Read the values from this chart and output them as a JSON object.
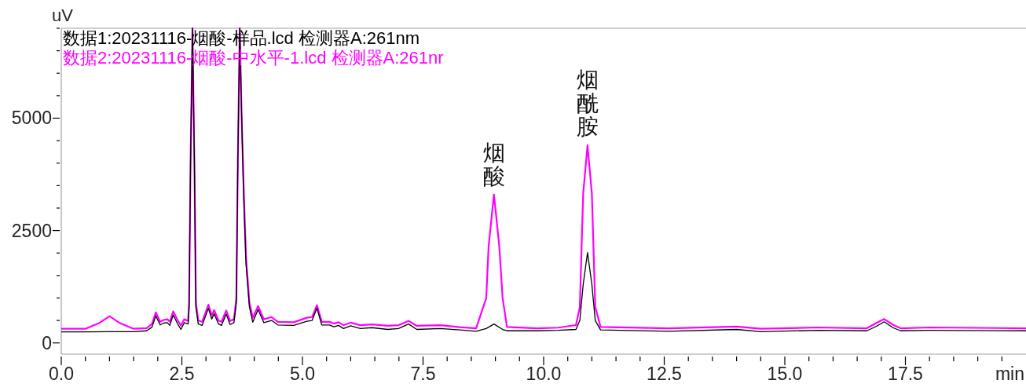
{
  "chart_data": {
    "type": "line",
    "xlabel": "min",
    "ylabel": "uV",
    "legend": "top left",
    "marker": "none",
    "line_style": "solid",
    "xlim": [
      0,
      20
    ],
    "ylim": [
      -250,
      7000
    ],
    "xticks": [
      {
        "value": 0,
        "label": "0.0"
      },
      {
        "value": 0.5,
        "label": null
      },
      {
        "value": 1,
        "label": null
      },
      {
        "value": 1.5,
        "label": null
      },
      {
        "value": 2,
        "label": null
      },
      {
        "value": 2.5,
        "label": "2.5"
      },
      {
        "value": 3,
        "label": null
      },
      {
        "value": 3.5,
        "label": null
      },
      {
        "value": 4,
        "label": null
      },
      {
        "value": 4.5,
        "label": null
      },
      {
        "value": 5,
        "label": "5.0"
      },
      {
        "value": 5.5,
        "label": null
      },
      {
        "value": 6,
        "label": null
      },
      {
        "value": 6.5,
        "label": null
      },
      {
        "value": 7,
        "label": null
      },
      {
        "value": 7.5,
        "label": "7.5"
      },
      {
        "value": 8,
        "label": null
      },
      {
        "value": 8.5,
        "label": null
      },
      {
        "value": 9,
        "label": null
      },
      {
        "value": 9.5,
        "label": null
      },
      {
        "value": 10,
        "label": "10.0"
      },
      {
        "value": 10.5,
        "label": null
      },
      {
        "value": 11,
        "label": null
      },
      {
        "value": 11.5,
        "label": null
      },
      {
        "value": 12,
        "label": null
      },
      {
        "value": 12.5,
        "label": "12.5"
      },
      {
        "value": 13,
        "label": null
      },
      {
        "value": 13.5,
        "label": null
      },
      {
        "value": 14,
        "label": null
      },
      {
        "value": 14.5,
        "label": null
      },
      {
        "value": 15,
        "label": "15.0"
      },
      {
        "value": 15.5,
        "label": null
      },
      {
        "value": 16,
        "label": null
      },
      {
        "value": 16.5,
        "label": null
      },
      {
        "value": 17,
        "label": null
      },
      {
        "value": 17.5,
        "label": "17.5"
      },
      {
        "value": 18,
        "label": null
      },
      {
        "value": 18.5,
        "label": null
      },
      {
        "value": 19,
        "label": null
      },
      {
        "value": 19.5,
        "label": null
      }
    ],
    "yticks": [
      0,
      {
        "value": 500,
        "label": null
      },
      {
        "value": 1000,
        "label": null
      },
      {
        "value": 1500,
        "label": null
      },
      {
        "value": 2000,
        "label": null
      },
      2500,
      {
        "value": 3000,
        "label": null
      },
      {
        "value": 3500,
        "label": null
      },
      {
        "value": 4000,
        "label": null
      },
      {
        "value": 4500,
        "label": null
      },
      5000,
      {
        "value": 5500,
        "label": null
      },
      {
        "value": 6000,
        "label": null
      },
      {
        "value": 6500,
        "label": null
      },
      {
        "value": 7000,
        "label": null
      }
    ],
    "series": [
      {
        "name": "数据1:20231116-烟酸-样品.lcd 检测器A:261nm",
        "color": "#000000",
        "x": [
          0,
          0.5,
          1.0,
          1.5,
          1.77,
          1.88,
          1.96,
          2.05,
          2.12,
          2.2,
          2.25,
          2.32,
          2.41,
          2.48,
          2.55,
          2.63,
          2.65,
          2.68,
          2.72,
          2.76,
          2.79,
          2.84,
          2.92,
          3.05,
          3.12,
          3.17,
          3.26,
          3.32,
          3.42,
          3.5,
          3.58,
          3.63,
          3.66,
          3.7,
          3.74,
          3.78,
          3.83,
          3.9,
          3.97,
          4.08,
          4.2,
          4.36,
          4.49,
          4.82,
          5.09,
          5.2,
          5.3,
          5.4,
          5.56,
          5.65,
          5.75,
          5.85,
          6.0,
          6.2,
          6.44,
          6.77,
          6.99,
          7.2,
          7.37,
          7.86,
          8.26,
          8.6,
          8.81,
          8.97,
          9.15,
          9.24,
          9.87,
          10.3,
          10.67,
          10.75,
          10.82,
          10.91,
          11.0,
          11.07,
          11.18,
          12.6,
          14.0,
          14.5,
          15.7,
          16.7,
          16.9,
          17.06,
          17.24,
          17.4,
          18.0,
          20.0
        ],
        "values": [
          245,
          245,
          250,
          250,
          270,
          350,
          600,
          400,
          440,
          450,
          390,
          620,
          430,
          300,
          450,
          420,
          800,
          4000,
          7000,
          4000,
          800,
          420,
          390,
          770,
          530,
          650,
          420,
          390,
          640,
          410,
          450,
          900,
          4000,
          7000,
          5000,
          3300,
          1750,
          800,
          460,
          740,
          450,
          500,
          400,
          390,
          480,
          500,
          770,
          400,
          400,
          360,
          390,
          320,
          380,
          320,
          340,
          300,
          320,
          420,
          300,
          320,
          290,
          260,
          320,
          420,
          300,
          270,
          270,
          280,
          300,
          500,
          1300,
          2010,
          1300,
          500,
          290,
          260,
          300,
          250,
          280,
          270,
          370,
          470,
          340,
          270,
          280,
          270
        ]
      },
      {
        "name": "数据2:20231116-烟酸-中水平-1.lcd 检测器A:261nr",
        "color": "#ff00ff",
        "x": [
          0,
          0.5,
          0.8,
          1.0,
          1.2,
          1.5,
          1.77,
          1.88,
          1.96,
          2.05,
          2.12,
          2.2,
          2.25,
          2.32,
          2.41,
          2.48,
          2.55,
          2.63,
          2.65,
          2.68,
          2.72,
          2.76,
          2.79,
          2.84,
          2.92,
          3.05,
          3.12,
          3.17,
          3.26,
          3.32,
          3.42,
          3.5,
          3.58,
          3.63,
          3.66,
          3.7,
          3.74,
          3.78,
          3.83,
          3.9,
          3.97,
          4.08,
          4.2,
          4.36,
          4.49,
          4.82,
          5.09,
          5.2,
          5.3,
          5.4,
          5.56,
          5.65,
          5.75,
          5.85,
          6.0,
          6.2,
          6.44,
          6.77,
          6.99,
          7.2,
          7.37,
          7.86,
          8.26,
          8.6,
          8.81,
          8.86,
          8.97,
          9.08,
          9.15,
          9.24,
          9.87,
          10.3,
          10.67,
          10.75,
          10.82,
          10.91,
          11.0,
          11.07,
          11.18,
          12.6,
          14.0,
          14.5,
          15.7,
          16.7,
          16.9,
          17.06,
          17.24,
          17.4,
          18.0,
          20.0
        ],
        "values": [
          315,
          315,
          450,
          595,
          450,
          315,
          330,
          420,
          680,
          470,
          510,
          525,
          470,
          700,
          510,
          385,
          525,
          490,
          900,
          4000,
          7000,
          4000,
          900,
          500,
          470,
          850,
          610,
          730,
          500,
          470,
          720,
          490,
          525,
          1000,
          4000,
          7000,
          5000,
          3500,
          1900,
          900,
          560,
          820,
          525,
          575,
          470,
          460,
          560,
          575,
          840,
          470,
          470,
          430,
          460,
          395,
          450,
          395,
          410,
          380,
          395,
          490,
          380,
          395,
          350,
          326,
          997,
          2160,
          3300,
          2160,
          997,
          355,
          326,
          340,
          396,
          800,
          3320,
          4400,
          3320,
          800,
          355,
          326,
          365,
          315,
          344,
          326,
          443,
          530,
          405,
          326,
          344,
          326
        ]
      }
    ],
    "annotations": [
      {
        "text": "烟酸",
        "x": 8.97,
        "y": 3300
      },
      {
        "text": "烟酰胺",
        "x": 10.91,
        "y": 4400
      }
    ]
  }
}
